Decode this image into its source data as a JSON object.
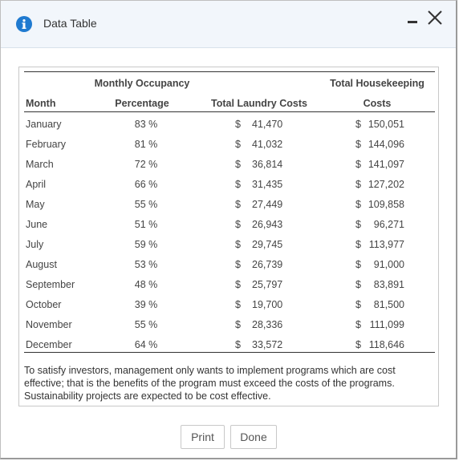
{
  "dialog": {
    "title": "Data Table",
    "colors": {
      "header_bg": "#f2f6fb",
      "info_icon": "#1f7ad0"
    },
    "icons": {
      "info": "info-icon",
      "minimize": "minimize-icon",
      "close": "close-icon"
    }
  },
  "table": {
    "headers": {
      "month": "Month",
      "occupancy_line1": "Monthly Occupancy",
      "occupancy_line2": "Percentage",
      "laundry": "Total Laundry Costs",
      "housekeeping_line1": "Total Housekeeping",
      "housekeeping_line2": "Costs"
    },
    "rows": [
      {
        "month": "January",
        "occupancy": "83 %",
        "laundry_sym": "$",
        "laundry": "41,470",
        "hk_sym": "$",
        "housekeeping": "150,051"
      },
      {
        "month": "February",
        "occupancy": "81 %",
        "laundry_sym": "$",
        "laundry": "41,032",
        "hk_sym": "$",
        "housekeeping": "144,096"
      },
      {
        "month": "March",
        "occupancy": "72 %",
        "laundry_sym": "$",
        "laundry": "36,814",
        "hk_sym": "$",
        "housekeeping": "141,097"
      },
      {
        "month": "April",
        "occupancy": "66 %",
        "laundry_sym": "$",
        "laundry": "31,435",
        "hk_sym": "$",
        "housekeeping": "127,202"
      },
      {
        "month": "May",
        "occupancy": "55 %",
        "laundry_sym": "$",
        "laundry": "27,449",
        "hk_sym": "$",
        "housekeeping": "109,858"
      },
      {
        "month": "June",
        "occupancy": "51 %",
        "laundry_sym": "$",
        "laundry": "26,943",
        "hk_sym": "$",
        "housekeeping": "96,271"
      },
      {
        "month": "July",
        "occupancy": "59 %",
        "laundry_sym": "$",
        "laundry": "29,745",
        "hk_sym": "$",
        "housekeeping": "113,977"
      },
      {
        "month": "August",
        "occupancy": "53 %",
        "laundry_sym": "$",
        "laundry": "26,739",
        "hk_sym": "$",
        "housekeeping": "91,000"
      },
      {
        "month": "September",
        "occupancy": "48 %",
        "laundry_sym": "$",
        "laundry": "25,797",
        "hk_sym": "$",
        "housekeeping": "83,891"
      },
      {
        "month": "October",
        "occupancy": "39 %",
        "laundry_sym": "$",
        "laundry": "19,700",
        "hk_sym": "$",
        "housekeeping": "81,500"
      },
      {
        "month": "November",
        "occupancy": "55 %",
        "laundry_sym": "$",
        "laundry": "28,336",
        "hk_sym": "$",
        "housekeeping": "111,099"
      },
      {
        "month": "December",
        "occupancy": "64 %",
        "laundry_sym": "$",
        "laundry": "33,572",
        "hk_sym": "$",
        "housekeeping": "118,646"
      }
    ]
  },
  "note": "To satisfy investors, management only wants to implement programs which are cost effective; that is the benefits of the program must exceed the costs of the programs. Sustainability projects are expected to be cost effective.",
  "buttons": {
    "print": "Print",
    "done": "Done"
  }
}
